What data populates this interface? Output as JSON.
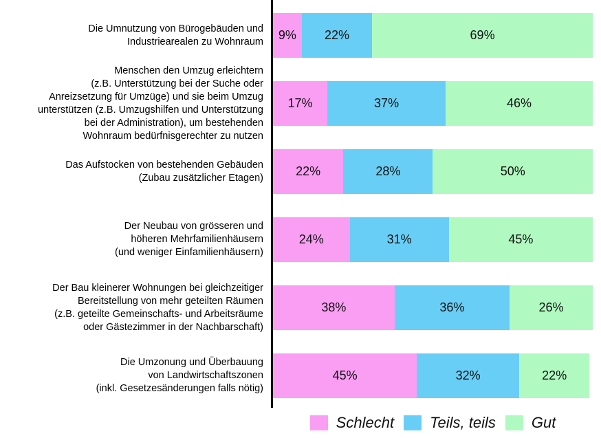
{
  "chart_data": {
    "type": "bar",
    "orientation": "horizontal",
    "stacked": true,
    "value_suffix": "%",
    "xlim": [
      0,
      100
    ],
    "grid": false,
    "legend_position": "bottom",
    "categories": [
      "Die Umnutzung von Bürogebäuden und\nIndustriearealen zu Wohnraum",
      "Menschen den Umzug erleichtern\n(z.B. Unterstützung bei der Suche oder\nAnreizsetzung für Umzüge) und sie beim Umzug\nunterstützen (z.B. Umzugshilfen und Unterstützung\nbei der Administration), um bestehenden\nWohnraum bedürfnisgerechter zu nutzen",
      "Das Aufstocken von bestehenden Gebäuden\n(Zubau zusätzlicher Etagen)",
      "Der Neubau von grösseren und\nhöheren Mehrfamilienhäusern\n(und weniger Einfamilienhäusern)",
      "Der Bau kleinerer Wohnungen bei gleichzeitiger\nBereitstellung von mehr geteilten Räumen\n(z.B. geteilte Gemeinschafts- und Arbeitsräume\noder Gästezimmer in der Nachbarschaft)",
      "Die Umzonung und Überbauung\nvon Landwirtschaftszonen\n(inkl. Gesetzesänderungen falls nötig)"
    ],
    "series": [
      {
        "name": "Schlecht",
        "color": "#FA9EF3",
        "values": [
          9,
          17,
          22,
          24,
          38,
          45
        ]
      },
      {
        "name": "Teils, teils",
        "color": "#69CEF5",
        "values": [
          22,
          37,
          28,
          31,
          36,
          32
        ]
      },
      {
        "name": "Gut",
        "color": "#B0FAC1",
        "values": [
          69,
          46,
          50,
          45,
          26,
          22
        ]
      }
    ]
  },
  "legend": {
    "items": [
      {
        "label": "Schlecht",
        "color": "#FA9EF3"
      },
      {
        "label": "Teils, teils",
        "color": "#69CEF5"
      },
      {
        "label": "Gut",
        "color": "#B0FAC1"
      }
    ]
  },
  "axis": {
    "color": "#000000"
  }
}
